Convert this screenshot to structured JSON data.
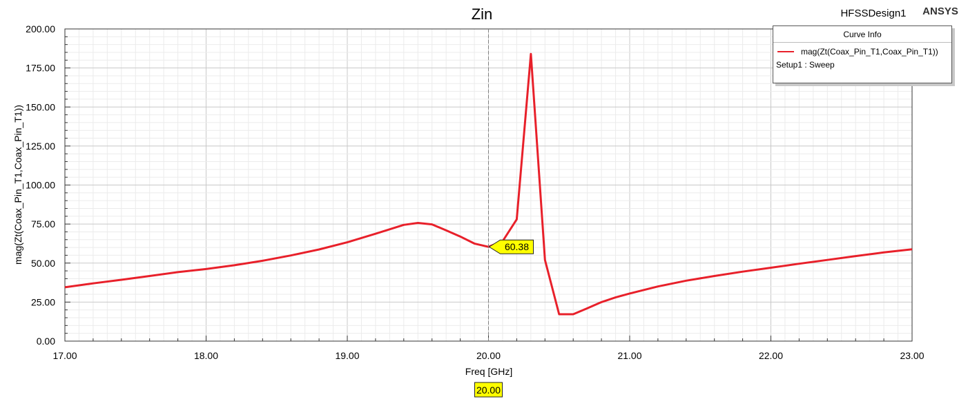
{
  "header": {
    "design_name": "HFSSDesign1",
    "brand": "ANSYS"
  },
  "legend": {
    "title": "Curve Info",
    "series_label": "mag(Zt(Coax_Pin_T1,Coax_Pin_T1))",
    "setup_label": "Setup1 : Sweep"
  },
  "marker": {
    "x": 20.0,
    "y_label": "60.38",
    "x_label": "20.00"
  },
  "chart_data": {
    "type": "line",
    "title": "Zin",
    "xlabel": "Freq [GHz]",
    "ylabel": "mag(Zt(Coax_Pin_T1,Coax_Pin_T1))",
    "xlim": [
      17.0,
      23.0
    ],
    "ylim": [
      0.0,
      200.0
    ],
    "x_ticks": [
      "17.00",
      "18.00",
      "19.00",
      "20.00",
      "21.00",
      "22.00",
      "23.00"
    ],
    "y_ticks": [
      "0.00",
      "25.00",
      "50.00",
      "75.00",
      "100.00",
      "125.00",
      "150.00",
      "175.00",
      "200.00"
    ],
    "grid": true,
    "legend_position": "top-right",
    "series": [
      {
        "name": "mag(Zt(Coax_Pin_T1,Coax_Pin_T1))",
        "color": "#e8202a",
        "x": [
          17.0,
          17.2,
          17.4,
          17.6,
          17.8,
          18.0,
          18.2,
          18.4,
          18.6,
          18.8,
          19.0,
          19.2,
          19.4,
          19.5,
          19.6,
          19.7,
          19.8,
          19.9,
          20.0,
          20.1,
          20.2,
          20.3,
          20.4,
          20.5,
          20.6,
          20.7,
          20.8,
          20.9,
          21.0,
          21.2,
          21.4,
          21.6,
          21.8,
          22.0,
          22.2,
          22.4,
          22.6,
          22.8,
          23.0
        ],
        "y": [
          34.5,
          37.0,
          39.3,
          41.7,
          44.2,
          46.2,
          48.6,
          51.5,
          54.9,
          58.7,
          63.3,
          68.8,
          74.5,
          75.7,
          74.8,
          71.0,
          67.0,
          62.5,
          60.4,
          64.0,
          78.0,
          184.0,
          52.0,
          17.2,
          17.2,
          21.0,
          25.0,
          28.0,
          30.5,
          35.0,
          38.7,
          41.7,
          44.5,
          47.0,
          49.6,
          52.0,
          54.5,
          56.8,
          58.8
        ]
      }
    ]
  }
}
